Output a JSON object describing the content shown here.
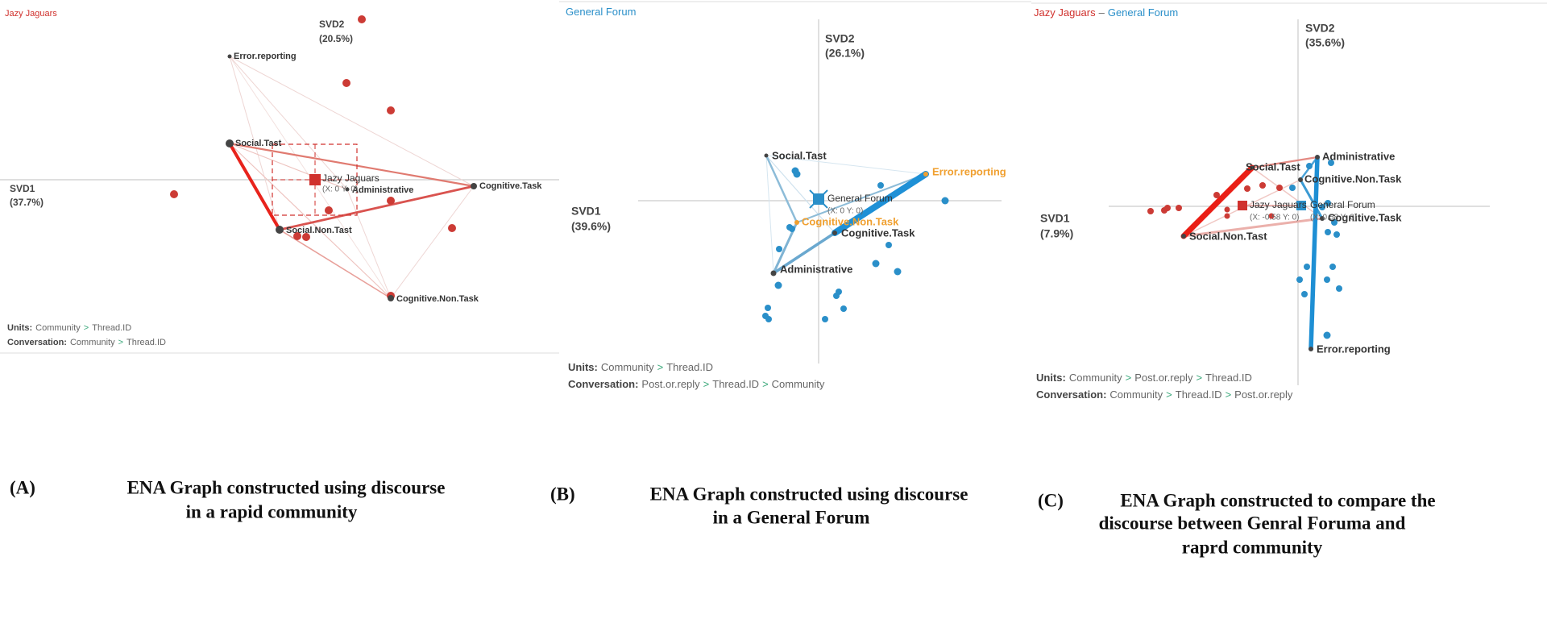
{
  "panels": [
    {
      "header": [
        "Jazy Jaguars"
      ],
      "y_axis": [
        "SVD2",
        "(20.5%)"
      ],
      "x_axis": [
        "SVD1",
        "(37.7%)"
      ],
      "nodes": [
        "Error.reporting",
        "Social.Tast",
        "Administrative",
        "Cognitive.Task",
        "Social.Non.Tast",
        "Cognitive.Non.Task"
      ],
      "means": [
        {
          "label": "Jazy Jaguars",
          "coords": "(X: 0 Y: 0)"
        }
      ],
      "units": {
        "label": "Units:",
        "parts": [
          "Community",
          ">",
          "Thread.ID"
        ]
      },
      "conversation": {
        "label": "Conversation:",
        "parts": [
          "Community",
          ">",
          "Thread.ID"
        ]
      }
    },
    {
      "header": [
        "General Forum"
      ],
      "y_axis": [
        "SVD2",
        "(26.1%)"
      ],
      "x_axis": [
        "SVD1",
        "(39.6%)"
      ],
      "nodes": [
        "Social.Tast",
        "Error.reporting",
        "Cognitive.Non.Task",
        "Cognitive.Task",
        "Administrative"
      ],
      "means": [
        {
          "label": "General Forum",
          "coords": "(X: 0 Y: 0)"
        }
      ],
      "units": {
        "label": "Units:",
        "parts": [
          "Community",
          ">",
          "Thread.ID"
        ]
      },
      "conversation": {
        "label": "Conversation:",
        "parts": [
          "Post.or.reply",
          ">",
          "Thread.ID",
          ">",
          "Community"
        ]
      }
    },
    {
      "header": [
        "Jazy Jaguars",
        "–",
        "General Forum"
      ],
      "y_axis": [
        "SVD2",
        "(35.6%)"
      ],
      "x_axis": [
        "SVD1",
        "(7.9%)"
      ],
      "nodes": [
        "Administrative",
        "Social.Tast",
        "Cognitive.Non.Task",
        "Cognitive.Task",
        "Social.Non.Tast",
        "Error.reporting"
      ],
      "means": [
        {
          "label": "Jazy Jaguars",
          "coords": "(X: -0.58 Y: 0)"
        },
        {
          "label": "General Forum",
          "coords": "(X: 0.58 Y: 0)"
        }
      ],
      "units": {
        "label": "Units:",
        "parts": [
          "Community",
          ">",
          "Post.or.reply",
          ">",
          "Thread.ID"
        ]
      },
      "conversation": {
        "label": "Conversation:",
        "parts": [
          "Community",
          ">",
          "Thread.ID",
          ">",
          "Post.or.reply"
        ]
      }
    }
  ],
  "captions": [
    {
      "label": "(A)",
      "lines": [
        "ENA Graph constructed using discourse",
        "in a rapid community"
      ]
    },
    {
      "label": "(B)",
      "lines": [
        "ENA Graph constructed using discourse",
        "in a General Forum"
      ]
    },
    {
      "label": "(C)",
      "lines": [
        "ENA Graph constructed to compare the",
        "discourse between Genral Foruma and",
        "raprd community"
      ]
    }
  ]
}
